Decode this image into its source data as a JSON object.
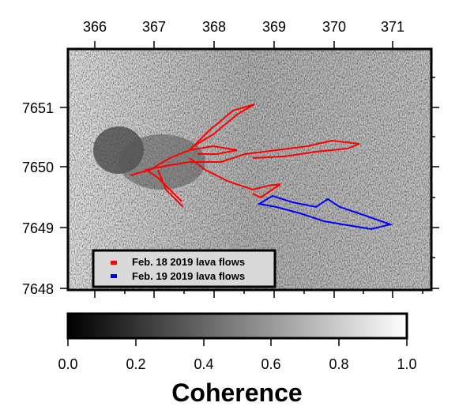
{
  "map": {
    "x_ticks": [
      "366",
      "367",
      "368",
      "369",
      "370",
      "371"
    ],
    "y_ticks": [
      "7651",
      "7650",
      "7649",
      "7648"
    ],
    "x_range": [
      365.55,
      371.6
    ],
    "y_range": [
      7647.98,
      7651.98
    ],
    "background": "SAR coherence image (grayscale)"
  },
  "legend": {
    "items": [
      {
        "label": "Feb. 18 2019 lava flows",
        "color": "#ff0000"
      },
      {
        "label": "Feb. 19 2019 lava flows",
        "color": "#0000ff"
      }
    ]
  },
  "colorbar": {
    "title": "Coherence",
    "ticks": [
      "0.0",
      "0.2",
      "0.4",
      "0.6",
      "0.8",
      "1.0"
    ],
    "range": [
      0,
      1
    ]
  }
}
